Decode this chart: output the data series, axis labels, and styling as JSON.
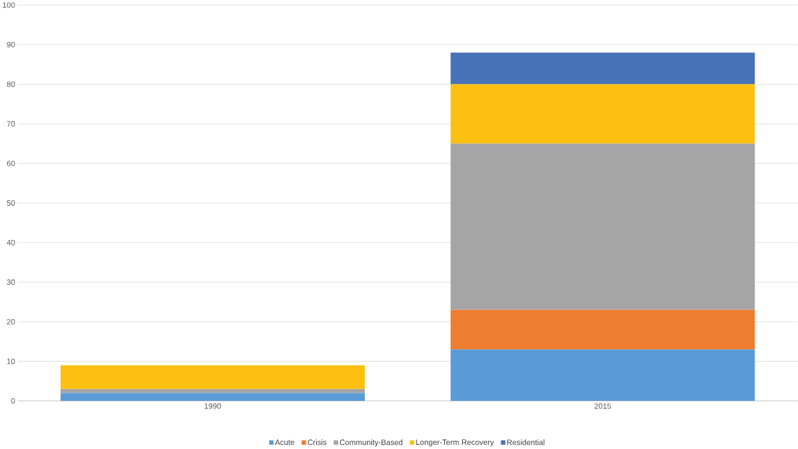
{
  "chart_data": {
    "type": "bar",
    "stacked": true,
    "categories": [
      "1990",
      "2015"
    ],
    "series": [
      {
        "name": "Acute",
        "color": "#5b9bd5",
        "values": [
          2,
          13
        ]
      },
      {
        "name": "Crisis",
        "color": "#ed7d31",
        "values": [
          0,
          10
        ]
      },
      {
        "name": "Community-Based",
        "color": "#a5a5a5",
        "values": [
          1,
          42
        ]
      },
      {
        "name": "Longer-Term Recovery",
        "color": "#fdc010",
        "values": [
          6,
          15
        ]
      },
      {
        "name": "Residential",
        "color": "#4872b8",
        "values": [
          0,
          8
        ]
      }
    ],
    "ylim": [
      0,
      100
    ],
    "yticks": [
      0,
      10,
      20,
      30,
      40,
      50,
      60,
      70,
      80,
      90,
      100
    ],
    "grid": "y",
    "legend": "bottom"
  }
}
